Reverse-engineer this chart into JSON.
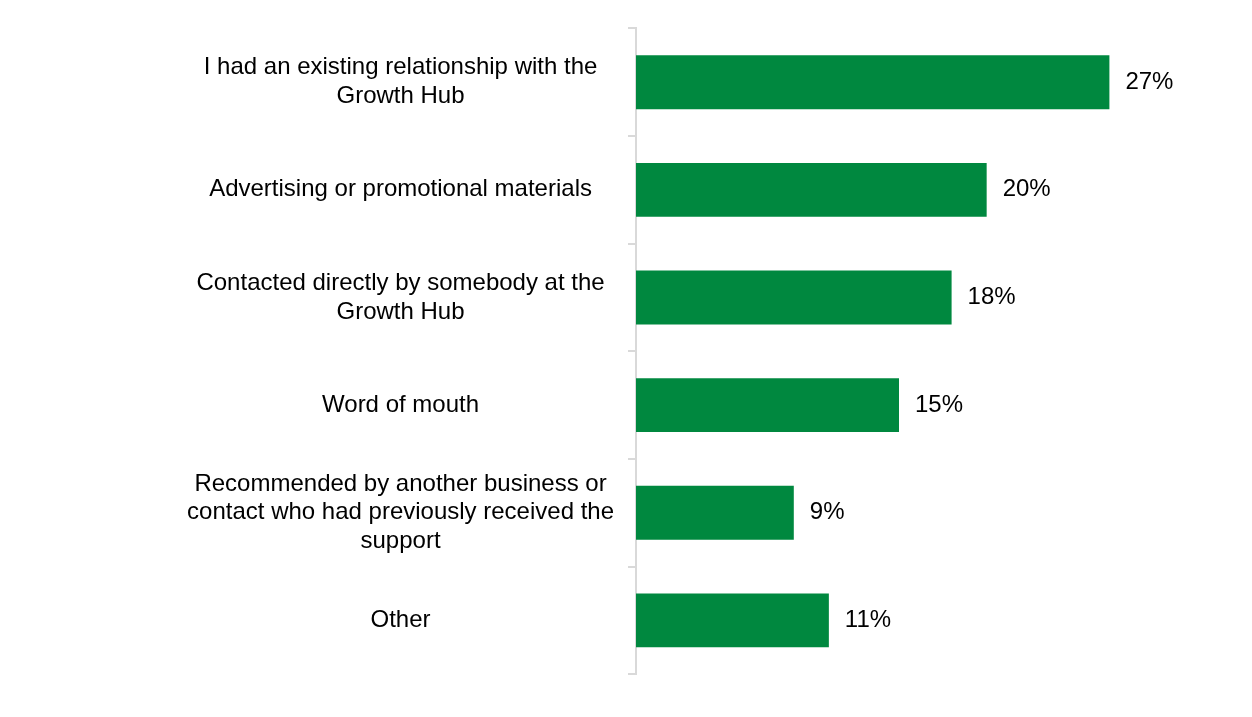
{
  "chart_data": {
    "type": "bar",
    "orientation": "horizontal",
    "categories": [
      "I had an existing relationship with the Growth Hub",
      "Advertising or promotional materials",
      "Contacted directly by somebody at the Growth Hub",
      "Word of mouth",
      "Recommended by another business or contact who had previously received the support",
      "Other"
    ],
    "values": [
      27,
      20,
      18,
      15,
      9,
      11
    ],
    "value_labels": [
      "27%",
      "20%",
      "18%",
      "15%",
      "9%",
      "11%"
    ],
    "color": "#00883f",
    "tick_labels": "y"
  }
}
